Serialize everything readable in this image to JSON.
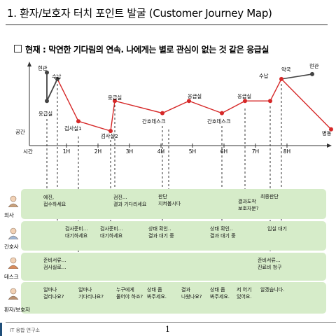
{
  "title": "1.  환자/보호자 터치 포인트 발굴 (Customer Journey Map)",
  "subtitle": "현재 : 막연한 기다림의 연속. 나에게는 별로 관심이 없는 것 같은 응급실",
  "axis": {
    "y_label": "공간",
    "x_label": "시간",
    "hours": [
      "1H",
      "2H",
      "3H",
      "4H",
      "5H",
      "6H",
      "7H",
      "8H"
    ]
  },
  "journey_points": [
    {
      "label": "현관",
      "level": 0.9
    },
    {
      "label": "응급실",
      "level": 0.55
    },
    {
      "label": "수납",
      "level": 0.82
    },
    {
      "label": "검사실1",
      "level": 0.3
    },
    {
      "label": "검사실2",
      "level": 0.18
    },
    {
      "label": "응급실",
      "level": 0.55
    },
    {
      "label": "간호데스크",
      "level": 0.4
    },
    {
      "label": "응급실",
      "level": 0.55
    },
    {
      "label": "간호데스크",
      "level": 0.4
    },
    {
      "label": "응급실",
      "level": 0.55
    },
    {
      "label": "수납",
      "level": 0.55
    },
    {
      "label": "약국",
      "level": 0.82
    },
    {
      "label": "현관",
      "level": 0.88
    },
    {
      "label": "병동",
      "level": 0.2
    }
  ],
  "colors": {
    "journey_line": "#d62828",
    "pre_line": "#444444",
    "lane_bg": "#d6ecc9"
  },
  "lanes": [
    {
      "label": "의사",
      "icon": "doctor-icon",
      "cells": [
        {
          "text": "예진,\n접수하세요"
        },
        {
          "text": "검진...\n결과 기다리세요"
        },
        {
          "text": "판단\n지켜봅시다"
        },
        {
          "text": "결과도착\n보호자분?"
        },
        {
          "text": "최종판단"
        }
      ]
    },
    {
      "label": "간호사",
      "icon": "nurse-icon",
      "cells": [
        {
          "text": "검사준비...\n대기하세요"
        },
        {
          "text": "검사준비...\n대기하세요"
        },
        {
          "text": "상태 확인..\n결과 대기 중"
        },
        {
          "text": "상태 확인..\n결과 대기 중"
        },
        {
          "text": "입실 대기"
        }
      ]
    },
    {
      "label": "데스크",
      "icon": "desk-clerk-icon",
      "cells": [
        {
          "text": "준비서류...\n검사실로..."
        },
        {
          "text": "준비서류...\n진료비 청구"
        }
      ]
    },
    {
      "label": "환자/보호자",
      "icon": "patient-icon",
      "cells": [
        {
          "text": "얼마나\n걸리나요?"
        },
        {
          "text": "얼마나\n기다리나요?"
        },
        {
          "text": "누구에게\n물어야 하죠?"
        },
        {
          "text": "상태 좀\n봐주세요."
        },
        {
          "text": "결과\n나왔나요?"
        },
        {
          "text": "상태 좀\n봐주세요."
        },
        {
          "text": "저 어기\n있어요."
        },
        {
          "text": "알겠습니다."
        }
      ]
    }
  ],
  "footer": {
    "org": "IT 융합 연구소",
    "page": "1"
  }
}
